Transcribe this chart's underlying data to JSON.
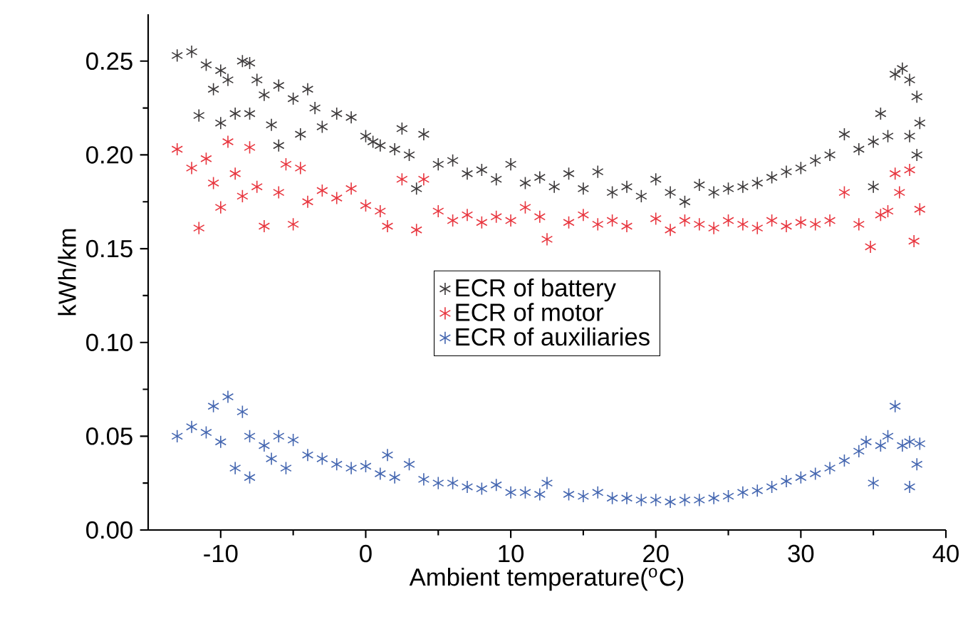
{
  "chart_data": {
    "type": "scatter",
    "xlabel": "Ambient temperature($^{o}$C)",
    "ylabel": "kWh/km",
    "xlim": [
      -15,
      40
    ],
    "xticks": [
      -10,
      0,
      10,
      20,
      30,
      40
    ],
    "ylim": [
      0,
      0.275
    ],
    "yticks": [
      {
        "value": 0,
        "label": "0.00"
      },
      {
        "value": 0.05,
        "label": "0.05"
      },
      {
        "value": 0.1,
        "label": "0.10"
      },
      {
        "value": 0.15,
        "label": "0.15"
      },
      {
        "value": 0.2,
        "label": "0.20"
      },
      {
        "value": 0.25,
        "label": "0.25"
      }
    ],
    "grid": false,
    "legend": "center",
    "marker": "cross",
    "series": [
      {
        "name": "ECR of battery",
        "color": "#3d3a3b",
        "x": [
          -13,
          -12,
          -11.5,
          -11,
          -10.5,
          -10,
          -10,
          -9.5,
          -9,
          -8.5,
          -8,
          -8,
          -7.5,
          -7,
          -6.5,
          -6,
          -6,
          -5,
          -4.5,
          -4,
          -3.5,
          -3,
          -2,
          -1,
          0,
          0.5,
          1,
          2,
          2.5,
          3,
          3.5,
          4,
          5,
          6,
          7,
          8,
          9,
          10,
          11,
          12,
          13,
          14,
          15,
          16,
          17,
          18,
          19,
          20,
          21,
          22,
          23,
          24,
          25,
          26,
          27,
          28,
          29,
          30,
          31,
          32,
          33,
          34,
          35,
          35,
          35.5,
          36,
          36.5,
          37,
          37.5,
          37.5,
          38,
          38,
          38.2
        ],
        "values": [
          0.253,
          0.255,
          0.221,
          0.248,
          0.235,
          0.217,
          0.245,
          0.24,
          0.222,
          0.25,
          0.249,
          0.222,
          0.24,
          0.232,
          0.216,
          0.205,
          0.237,
          0.23,
          0.211,
          0.235,
          0.225,
          0.215,
          0.222,
          0.22,
          0.21,
          0.207,
          0.205,
          0.203,
          0.214,
          0.2,
          0.182,
          0.211,
          0.195,
          0.197,
          0.19,
          0.192,
          0.187,
          0.195,
          0.185,
          0.188,
          0.183,
          0.19,
          0.182,
          0.191,
          0.18,
          0.183,
          0.178,
          0.187,
          0.18,
          0.175,
          0.184,
          0.18,
          0.182,
          0.183,
          0.185,
          0.188,
          0.191,
          0.193,
          0.197,
          0.2,
          0.211,
          0.203,
          0.183,
          0.207,
          0.222,
          0.21,
          0.243,
          0.246,
          0.21,
          0.24,
          0.231,
          0.2,
          0.217
        ]
      },
      {
        "name": "ECR of motor",
        "color": "#e8363f",
        "x": [
          -13,
          -12,
          -11.5,
          -11,
          -10.5,
          -10,
          -9.5,
          -9,
          -8.5,
          -8,
          -7.5,
          -7,
          -6,
          -5.5,
          -5,
          -4.5,
          -4,
          -3,
          -2,
          -1,
          0,
          1,
          1.5,
          2.5,
          3.5,
          4,
          5,
          6,
          7,
          8,
          9,
          10,
          11,
          12,
          12.5,
          14,
          15,
          16,
          17,
          18,
          20,
          21,
          22,
          23,
          24,
          25,
          26,
          27,
          28,
          29,
          30,
          31,
          32,
          33,
          34,
          34.8,
          35.5,
          36,
          36.5,
          36.8,
          37.5,
          37.8,
          38.2
        ],
        "values": [
          0.203,
          0.193,
          0.161,
          0.198,
          0.185,
          0.172,
          0.207,
          0.19,
          0.178,
          0.204,
          0.183,
          0.162,
          0.18,
          0.195,
          0.163,
          0.193,
          0.175,
          0.181,
          0.177,
          0.182,
          0.173,
          0.17,
          0.162,
          0.187,
          0.16,
          0.187,
          0.17,
          0.165,
          0.168,
          0.164,
          0.167,
          0.165,
          0.172,
          0.167,
          0.155,
          0.164,
          0.168,
          0.163,
          0.165,
          0.162,
          0.166,
          0.16,
          0.165,
          0.163,
          0.161,
          0.165,
          0.163,
          0.161,
          0.165,
          0.162,
          0.164,
          0.163,
          0.165,
          0.18,
          0.163,
          0.151,
          0.168,
          0.17,
          0.19,
          0.18,
          0.192,
          0.154,
          0.171
        ]
      },
      {
        "name": "ECR of auxiliaries",
        "color": "#4466b0",
        "x": [
          -13,
          -12,
          -11,
          -10.5,
          -10,
          -9.5,
          -9,
          -8.5,
          -8,
          -8,
          -7,
          -6.5,
          -6,
          -5.5,
          -5,
          -4,
          -3,
          -2,
          -1,
          0,
          1,
          1.5,
          2,
          3,
          4,
          5,
          6,
          7,
          8,
          9,
          10,
          11,
          12,
          12.5,
          14,
          15,
          16,
          17,
          18,
          19,
          20,
          21,
          22,
          23,
          24,
          25,
          26,
          27,
          28,
          29,
          30,
          31,
          32,
          33,
          34,
          34.5,
          35,
          35.5,
          36,
          36.5,
          37,
          37.5,
          37.5,
          38,
          38.2
        ],
        "values": [
          0.05,
          0.055,
          0.052,
          0.066,
          0.047,
          0.071,
          0.033,
          0.063,
          0.028,
          0.05,
          0.045,
          0.038,
          0.05,
          0.033,
          0.048,
          0.04,
          0.038,
          0.035,
          0.033,
          0.034,
          0.03,
          0.04,
          0.028,
          0.035,
          0.027,
          0.025,
          0.025,
          0.023,
          0.022,
          0.024,
          0.02,
          0.02,
          0.019,
          0.025,
          0.019,
          0.018,
          0.02,
          0.017,
          0.017,
          0.016,
          0.016,
          0.015,
          0.016,
          0.016,
          0.017,
          0.018,
          0.02,
          0.021,
          0.023,
          0.026,
          0.028,
          0.03,
          0.033,
          0.037,
          0.042,
          0.047,
          0.025,
          0.045,
          0.05,
          0.066,
          0.045,
          0.023,
          0.047,
          0.035,
          0.046
        ]
      }
    ]
  }
}
